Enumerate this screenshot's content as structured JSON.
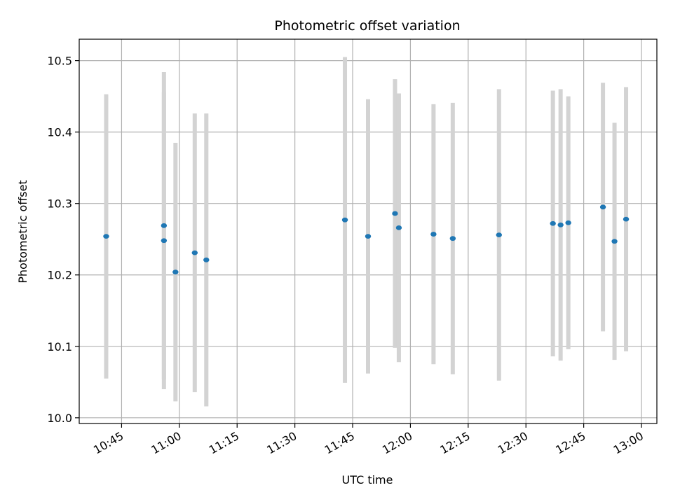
{
  "chart_data": {
    "type": "scatter",
    "title": "Photometric offset variation",
    "xlabel": "UTC time",
    "ylabel": "Photometric offset",
    "xlim": [
      "10:34",
      "13:04"
    ],
    "ylim": [
      9.992,
      10.53
    ],
    "x_ticks": [
      "10:45",
      "11:00",
      "11:15",
      "11:30",
      "11:45",
      "12:00",
      "12:15",
      "12:30",
      "12:45",
      "13:00"
    ],
    "y_ticks": [
      10.0,
      10.1,
      10.2,
      10.3,
      10.4,
      10.5
    ],
    "y_tick_labels": [
      "10.0",
      "10.1",
      "10.2",
      "10.3",
      "10.4",
      "10.5"
    ],
    "grid": true,
    "colors": {
      "marker": "#1f77b4",
      "errorbar": "#d3d3d3",
      "grid": "#b0b0b0"
    },
    "points": [
      {
        "x": "10:41",
        "y": 10.254,
        "yerr": 0.199
      },
      {
        "x": "10:56",
        "y": 10.269,
        "yerr": 0.215
      },
      {
        "x": "10:56",
        "y": 10.248,
        "yerr": 0.208
      },
      {
        "x": "10:59",
        "y": 10.204,
        "yerr": 0.181
      },
      {
        "x": "11:04",
        "y": 10.231,
        "yerr": 0.195
      },
      {
        "x": "11:07",
        "y": 10.221,
        "yerr": 0.205
      },
      {
        "x": "11:43",
        "y": 10.277,
        "yerr": 0.228
      },
      {
        "x": "11:49",
        "y": 10.254,
        "yerr": 0.192
      },
      {
        "x": "11:56",
        "y": 10.286,
        "yerr": 0.188
      },
      {
        "x": "11:57",
        "y": 10.266,
        "yerr": 0.188
      },
      {
        "x": "12:06",
        "y": 10.257,
        "yerr": 0.182
      },
      {
        "x": "12:11",
        "y": 10.251,
        "yerr": 0.19
      },
      {
        "x": "12:23",
        "y": 10.256,
        "yerr": 0.204
      },
      {
        "x": "12:37",
        "y": 10.272,
        "yerr": 0.186
      },
      {
        "x": "12:39",
        "y": 10.27,
        "yerr": 0.19
      },
      {
        "x": "12:41",
        "y": 10.273,
        "yerr": 0.177
      },
      {
        "x": "12:50",
        "y": 10.295,
        "yerr": 0.174
      },
      {
        "x": "12:53",
        "y": 10.247,
        "yerr": 0.166
      },
      {
        "x": "12:56",
        "y": 10.278,
        "yerr": 0.185
      }
    ]
  }
}
